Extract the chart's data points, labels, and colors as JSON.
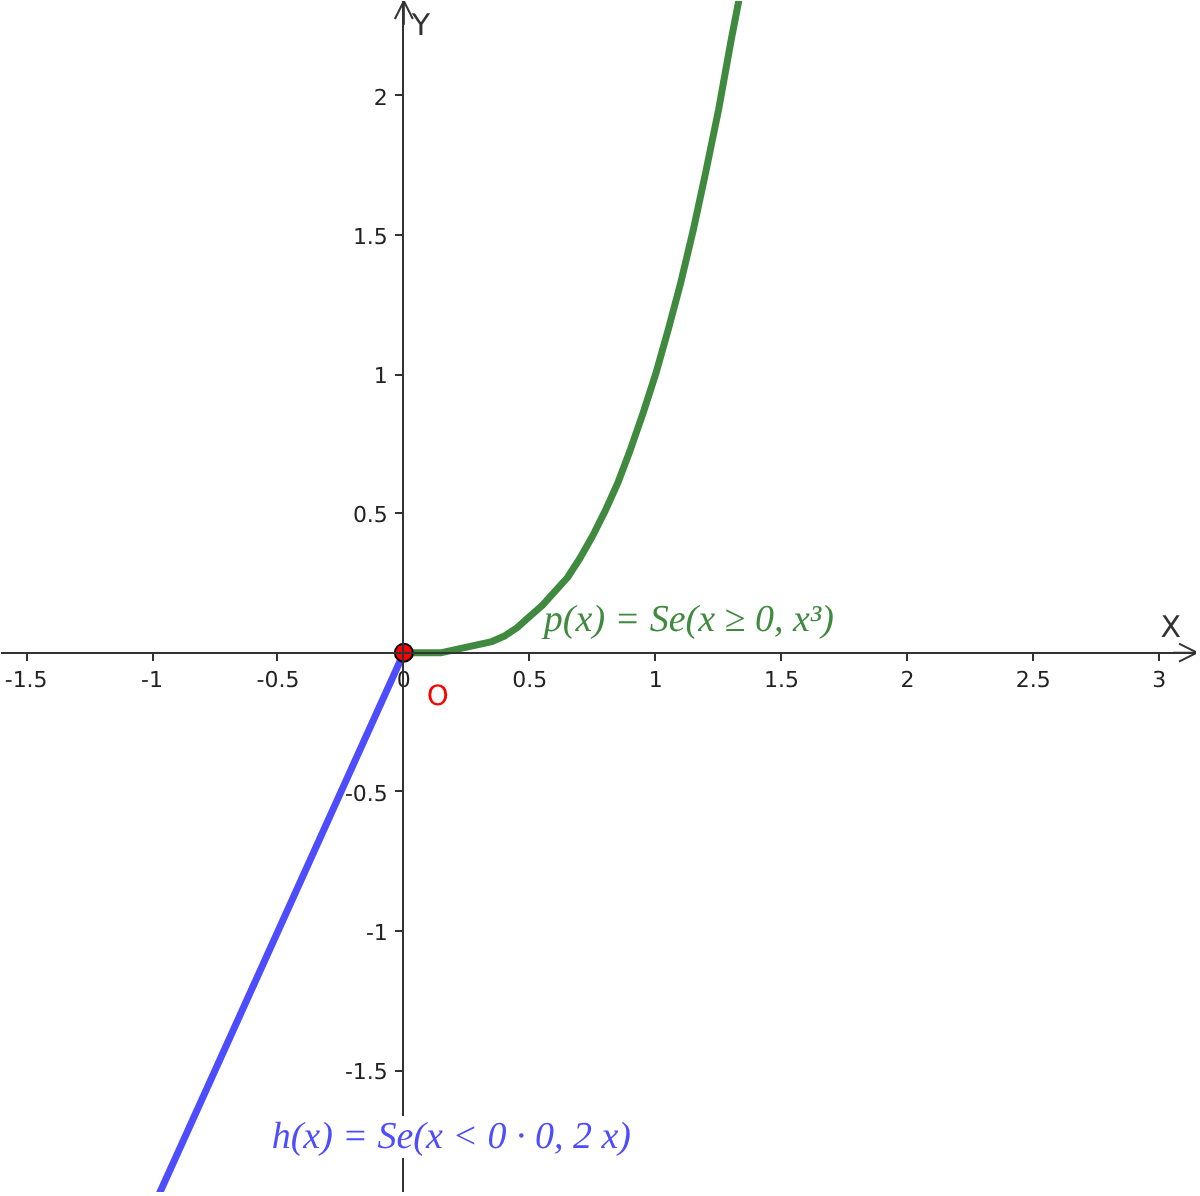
{
  "chart_data": {
    "type": "line",
    "xlabel": "X",
    "ylabel": "Y",
    "xlim": [
      -1.6,
      3.15
    ],
    "ylim": [
      -1.94,
      2.34
    ],
    "xticks": [
      -1.5,
      -1,
      -0.5,
      0,
      0.5,
      1,
      1.5,
      2,
      2.5,
      3
    ],
    "yticks": [
      -1.5,
      -1,
      -0.5,
      0.5,
      1,
      1.5,
      2
    ],
    "grid": false,
    "line_style": "solid",
    "series": [
      {
        "name": "h(x) = Se(x < 0 · 0, 2 x)",
        "color": "#4d4dff",
        "x": [
          -0.97,
          0
        ],
        "values": [
          -1.94,
          0
        ]
      },
      {
        "name": "p(x) = Se(x ≥ 0, x³)",
        "color": "#3f8a3f",
        "x": [
          0,
          0.05,
          0.1,
          0.15,
          0.2,
          0.25,
          0.3,
          0.35,
          0.4,
          0.45,
          0.5,
          0.55,
          0.6,
          0.65,
          0.7,
          0.75,
          0.8,
          0.85,
          0.9,
          0.95,
          1.0,
          1.05,
          1.1,
          1.15,
          1.2,
          1.25,
          1.3,
          1.33
        ],
        "values": [
          0,
          0,
          0,
          0,
          0.01,
          0.02,
          0.03,
          0.04,
          0.06,
          0.09,
          0.13,
          0.17,
          0.22,
          0.27,
          0.34,
          0.42,
          0.51,
          0.61,
          0.73,
          0.86,
          1.0,
          1.16,
          1.33,
          1.52,
          1.73,
          1.95,
          2.2,
          2.34
        ]
      },
      {
        "name": "O",
        "type": "scatter",
        "marker": "circle",
        "color": "#ff0000",
        "x": [
          0
        ],
        "values": [
          0
        ]
      }
    ]
  }
}
